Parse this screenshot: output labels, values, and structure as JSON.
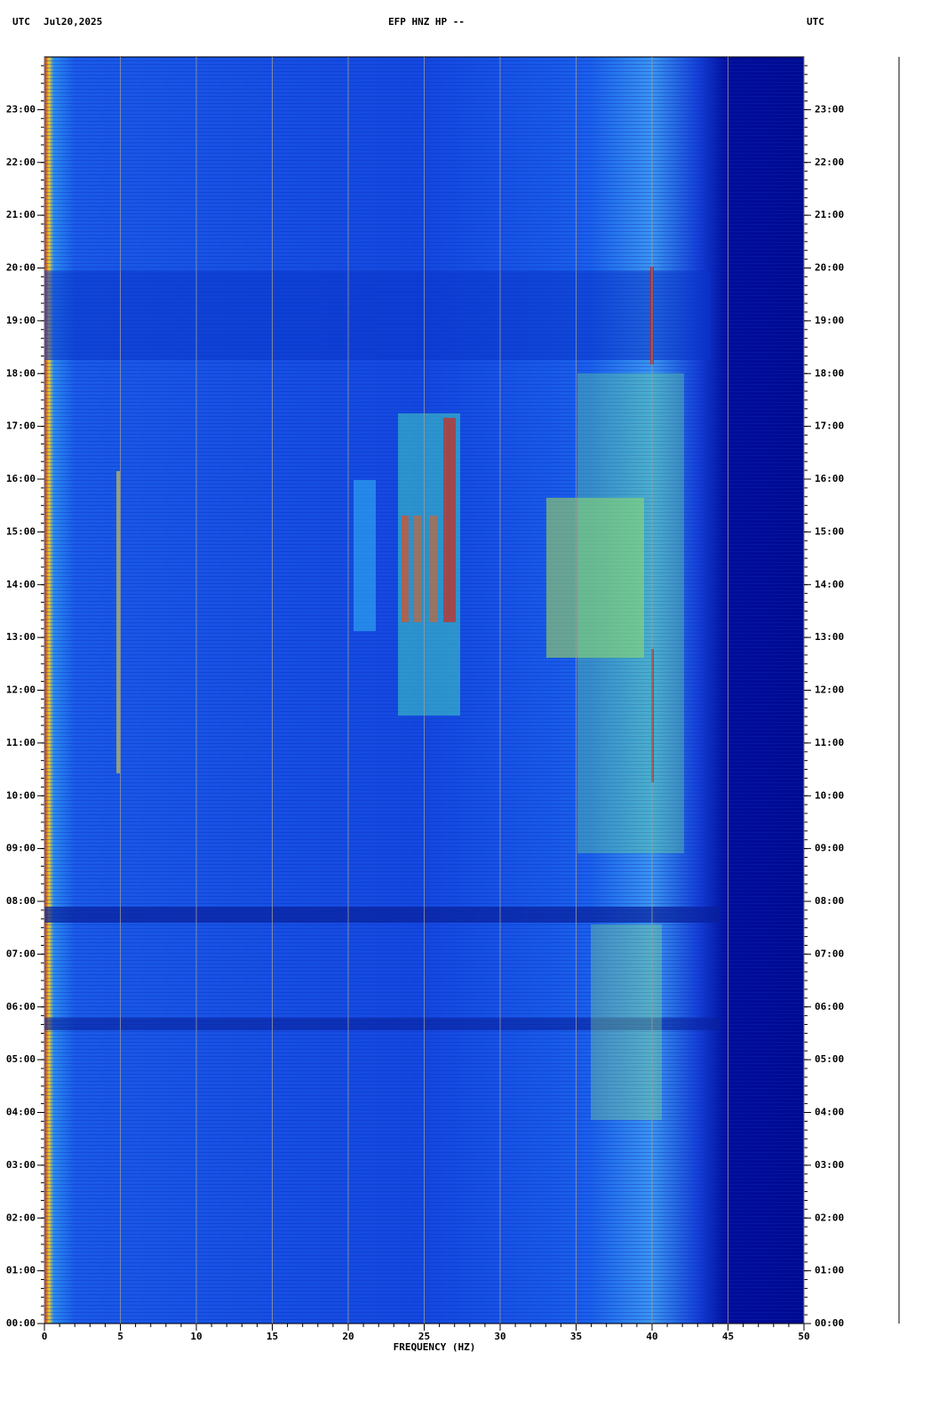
{
  "chart_data": {
    "type": "spectrogram",
    "title": "EFP HNZ HP --",
    "timezone_left": "UTC",
    "date": "Jul20,2025",
    "timezone_right": "UTC",
    "xlabel": "FREQUENCY (HZ)",
    "xlim": [
      0,
      50
    ],
    "xticks": [
      0,
      5,
      10,
      15,
      20,
      25,
      30,
      35,
      40,
      45,
      50
    ],
    "ylim": [
      0,
      24
    ],
    "yticks": [
      {
        "value": 0,
        "label": "00:00"
      },
      {
        "value": 1,
        "label": "01:00"
      },
      {
        "value": 2,
        "label": "02:00"
      },
      {
        "value": 3,
        "label": "03:00"
      },
      {
        "value": 4,
        "label": "04:00"
      },
      {
        "value": 5,
        "label": "05:00"
      },
      {
        "value": 6,
        "label": "06:00"
      },
      {
        "value": 7,
        "label": "07:00"
      },
      {
        "value": 8,
        "label": "08:00"
      },
      {
        "value": 9,
        "label": "09:00"
      },
      {
        "value": 10,
        "label": "10:00"
      },
      {
        "value": 11,
        "label": "11:00"
      },
      {
        "value": 12,
        "label": "12:00"
      },
      {
        "value": 13,
        "label": "13:00"
      },
      {
        "value": 14,
        "label": "14:00"
      },
      {
        "value": 15,
        "label": "15:00"
      },
      {
        "value": 16,
        "label": "16:00"
      },
      {
        "value": 17,
        "label": "17:00"
      },
      {
        "value": 18,
        "label": "18:00"
      },
      {
        "value": 19,
        "label": "19:00"
      },
      {
        "value": 20,
        "label": "20:00"
      },
      {
        "value": 21,
        "label": "21:00"
      },
      {
        "value": 22,
        "label": "22:00"
      },
      {
        "value": 23,
        "label": "23:00"
      }
    ],
    "grid": true
  }
}
